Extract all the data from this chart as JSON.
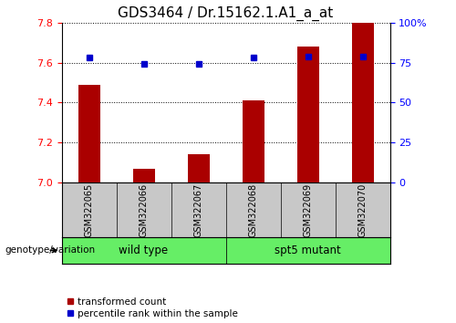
{
  "title": "GDS3464 / Dr.15162.1.A1_a_at",
  "samples": [
    "GSM322065",
    "GSM322066",
    "GSM322067",
    "GSM322068",
    "GSM322069",
    "GSM322070"
  ],
  "transformed_count": [
    7.49,
    7.07,
    7.14,
    7.41,
    7.68,
    7.8
  ],
  "percentile_rank": [
    78,
    74,
    74,
    78,
    79,
    79
  ],
  "ylim_left": [
    7.0,
    7.8
  ],
  "ylim_right": [
    0,
    100
  ],
  "yticks_left": [
    7.0,
    7.2,
    7.4,
    7.6,
    7.8
  ],
  "yticks_right": [
    0,
    25,
    50,
    75,
    100
  ],
  "ytick_labels_right": [
    "0",
    "25",
    "50",
    "75",
    "100%"
  ],
  "bar_color": "#AA0000",
  "dot_color": "#0000CC",
  "bar_width": 0.4,
  "legend_items": [
    {
      "label": "transformed count",
      "color": "#AA0000"
    },
    {
      "label": "percentile rank within the sample",
      "color": "#0000CC"
    }
  ],
  "genotype_label": "genotype/variation",
  "group_bg_color": "#C8C8C8",
  "group_green_color": "#66EE66",
  "title_fontsize": 11,
  "groups": [
    {
      "label": "wild type",
      "start": 0,
      "end": 2
    },
    {
      "label": "spt5 mutant",
      "start": 3,
      "end": 5
    }
  ]
}
